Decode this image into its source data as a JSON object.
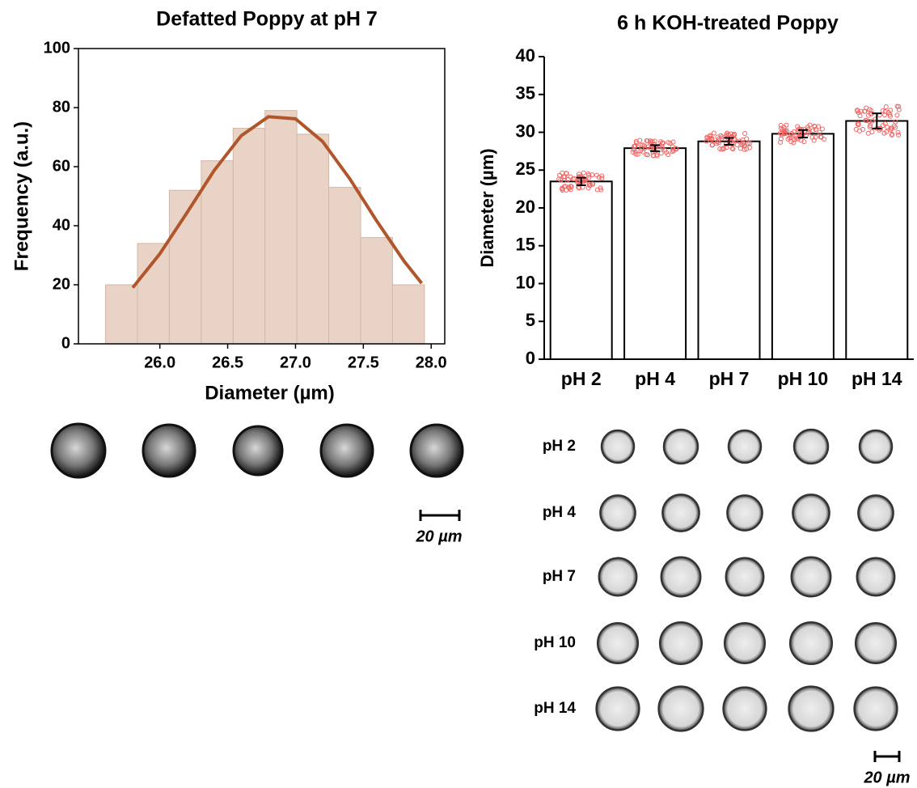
{
  "chart_data": [
    {
      "type": "histogram",
      "title": "Defatted Poppy at pH 7",
      "xlabel": "Diameter (µm)",
      "ylabel": "Frequency (a.u.)",
      "bins": [
        25.6,
        25.835,
        26.07,
        26.305,
        26.54,
        26.775,
        27.01,
        27.245,
        27.48,
        27.715,
        27.95
      ],
      "values": [
        20,
        34,
        52,
        62,
        73,
        79,
        71,
        53,
        36,
        20
      ],
      "color": "#e8d3c6",
      "fit": {
        "x": [
          25.8,
          26.0,
          26.2,
          26.4,
          26.6,
          26.8,
          27.0,
          27.2,
          27.4,
          27.6,
          27.8,
          27.93
        ],
        "values": [
          19.0,
          30.5,
          44.4,
          58.7,
          70.5,
          76.9,
          76.2,
          68.5,
          55.9,
          41.5,
          28.0,
          20.5
        ],
        "color": "#b0562a"
      },
      "xlim": [
        25.4,
        28.1
      ],
      "ylim": [
        0,
        100
      ],
      "xticks": [
        {
          "value": 26,
          "label": "26.0"
        },
        26.5,
        {
          "value": 27,
          "label": "27.0"
        },
        27.5,
        {
          "value": 28,
          "label": "28.0"
        }
      ],
      "yticks": [
        0,
        20,
        40,
        60,
        80,
        100
      ]
    },
    {
      "type": "bar",
      "title": "6 h KOH-treated Poppy",
      "ylabel": "Diameter (µm)",
      "categories": [
        "pH 2",
        "pH 4",
        "pH 7",
        "pH 10",
        "pH 14"
      ],
      "values": [
        23.5,
        27.9,
        28.8,
        29.8,
        31.5
      ],
      "errors": [
        0.5,
        0.4,
        0.45,
        0.5,
        1.0
      ],
      "color": "#ffffff",
      "point_color": "#f06464",
      "ylim": [
        0,
        40
      ],
      "yticks": [
        0,
        5,
        10,
        15,
        20,
        25,
        30,
        35,
        40
      ]
    }
  ],
  "micrographs": {
    "left_scale": "20 µm",
    "rows": [
      "pH 2",
      "pH 4",
      "pH 7",
      "pH 10",
      "pH 14"
    ],
    "right_scale": "20 µm"
  }
}
